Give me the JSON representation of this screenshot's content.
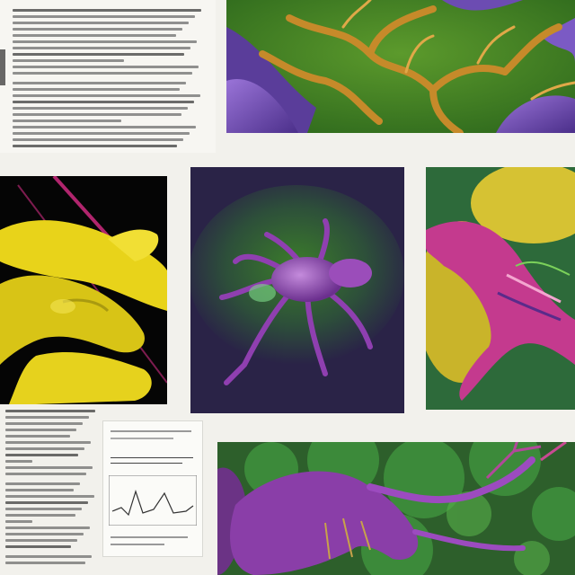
{
  "page": {
    "background": "#f2f1ec",
    "description_colors": {
      "yellow": "#e6d21d",
      "purple": "#8a3ea8",
      "magenta": "#c43a8e",
      "green": "#3f8a2b",
      "orange": "#d39a2a"
    }
  },
  "panels": [
    {
      "name": "branching-specimen-photo"
    },
    {
      "name": "yellow-gloved-hand-photo"
    },
    {
      "name": "purple-arachnid-photo"
    },
    {
      "name": "pink-organ-specimen-photo"
    },
    {
      "name": "purple-creature-foliage-photo"
    },
    {
      "name": "chart-figure-card"
    }
  ],
  "text_blocks": [
    {
      "name": "top-left-text-column"
    },
    {
      "name": "bottom-left-text-column"
    }
  ]
}
